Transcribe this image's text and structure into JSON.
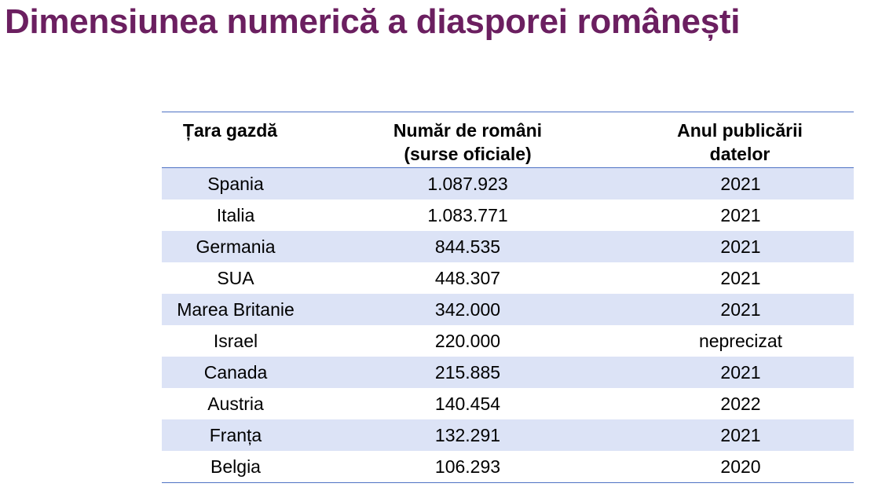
{
  "title": "Dimensiunea numerică a diasporei românești",
  "table": {
    "headers": {
      "country": [
        "Țara gazdă"
      ],
      "count": [
        "Număr de români",
        "(surse oficiale)"
      ],
      "year": [
        "Anul publicării",
        "datelor"
      ]
    },
    "rows": [
      {
        "country": "Spania",
        "count": "1.087.923",
        "year": "2021"
      },
      {
        "country": "Italia",
        "count": "1.083.771",
        "year": "2021"
      },
      {
        "country": "Germania",
        "count": "844.535",
        "year": "2021"
      },
      {
        "country": "SUA",
        "count": "448.307",
        "year": "2021"
      },
      {
        "country": "Marea Britanie",
        "count": "342.000",
        "year": "2021"
      },
      {
        "country": "Israel",
        "count": "220.000",
        "year": "neprecizat"
      },
      {
        "country": "Canada",
        "count": "215.885",
        "year": "2021"
      },
      {
        "country": "Austria",
        "count": "140.454",
        "year": "2022"
      },
      {
        "country": "Franța",
        "count": "132.291",
        "year": "2021"
      },
      {
        "country": "Belgia",
        "count": "106.293",
        "year": "2020"
      }
    ]
  },
  "colors": {
    "title": "#6b1f60",
    "row_shade": "#dce3f6",
    "rule": "#4f72c4"
  }
}
